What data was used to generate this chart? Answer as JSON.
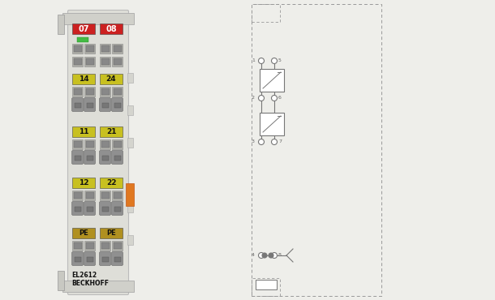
{
  "bg_color": "#e0e0da",
  "body_bg": "#deded8",
  "bracket_color": "#ccccc4",
  "label_red": "#cc2020",
  "label_yellow": "#c8c020",
  "label_pe": "#b09020",
  "label_orange": "#e07820",
  "led_green": "#44bb44",
  "text_dark": "#111111",
  "connector_dark": "#666666",
  "connector_mid": "#999999",
  "connector_light": "#bbbbbb",
  "lever_color": "#777777",
  "diagram_line": "#777777",
  "diagram_bg": "#f8f8f6",
  "title": "EL2612",
  "subtitle": "BECKHOFF",
  "labels_top": [
    "07",
    "08"
  ],
  "labels_row1": [
    "14",
    "24"
  ],
  "labels_row2": [
    "11",
    "21"
  ],
  "labels_row3": [
    "12",
    "22"
  ],
  "labels_row4": [
    "PE",
    "PE"
  ]
}
